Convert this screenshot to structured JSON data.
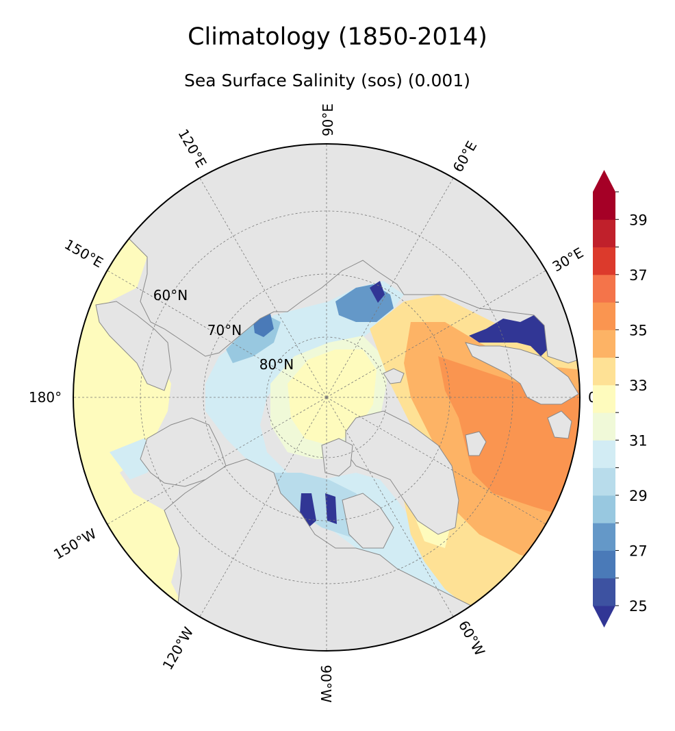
{
  "title": "Climatology (1850-2014)",
  "subtitle": "Sea Surface Salinity (sos) (0.001)",
  "map": {
    "projection": "north-polar-stereographic",
    "lon_labels": [
      "90°E",
      "120°E",
      "60°E",
      "150°E",
      "30°E",
      "180°",
      "0°",
      "150°W",
      "120°W",
      "90°W",
      "60°W"
    ],
    "lat_labels": [
      "60°N",
      "70°N",
      "80°N"
    ],
    "land_color": "#e5e5e5",
    "coast_color": "#888888"
  },
  "colorbar": {
    "ticks": [
      "25",
      "27",
      "29",
      "31",
      "33",
      "35",
      "37",
      "39"
    ],
    "min": 25,
    "max": 40,
    "step": 1,
    "extend": "both",
    "colors": [
      "#3d52a1",
      "#4a7ab8",
      "#6498c8",
      "#98c8e0",
      "#b8dceb",
      "#d2ecf4",
      "#f0f9d8",
      "#fefbbd",
      "#fee195",
      "#fdb365",
      "#fa9550",
      "#f4744a",
      "#dc3a2c",
      "#c0202b",
      "#a50026"
    ],
    "under_color": "#313695",
    "over_color": "#a50026"
  }
}
